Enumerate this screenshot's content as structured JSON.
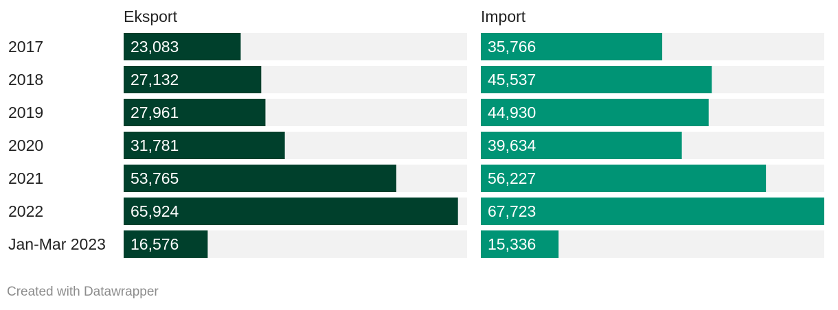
{
  "chart_data": {
    "type": "bar",
    "orientation": "horizontal",
    "categories": [
      "2017",
      "2018",
      "2019",
      "2020",
      "2021",
      "2022",
      "Jan-Mar 2023"
    ],
    "series": [
      {
        "name": "Eksport",
        "values": [
          23083,
          27132,
          27961,
          31781,
          53765,
          65924,
          16576
        ],
        "labels": [
          "23,083",
          "27,132",
          "27,961",
          "31,781",
          "53,765",
          "65,924",
          "16,576"
        ],
        "color": "#00402c"
      },
      {
        "name": "Import",
        "values": [
          35766,
          45537,
          44930,
          39634,
          56227,
          67723,
          15336
        ],
        "labels": [
          "35,766",
          "45,537",
          "44,930",
          "39,634",
          "56,227",
          "67,723",
          "15,336"
        ],
        "color": "#009475"
      }
    ],
    "xlim": [
      0,
      67723
    ],
    "track_color": "#f2f2f2"
  },
  "footer": {
    "credit": "Created with Datawrapper"
  }
}
